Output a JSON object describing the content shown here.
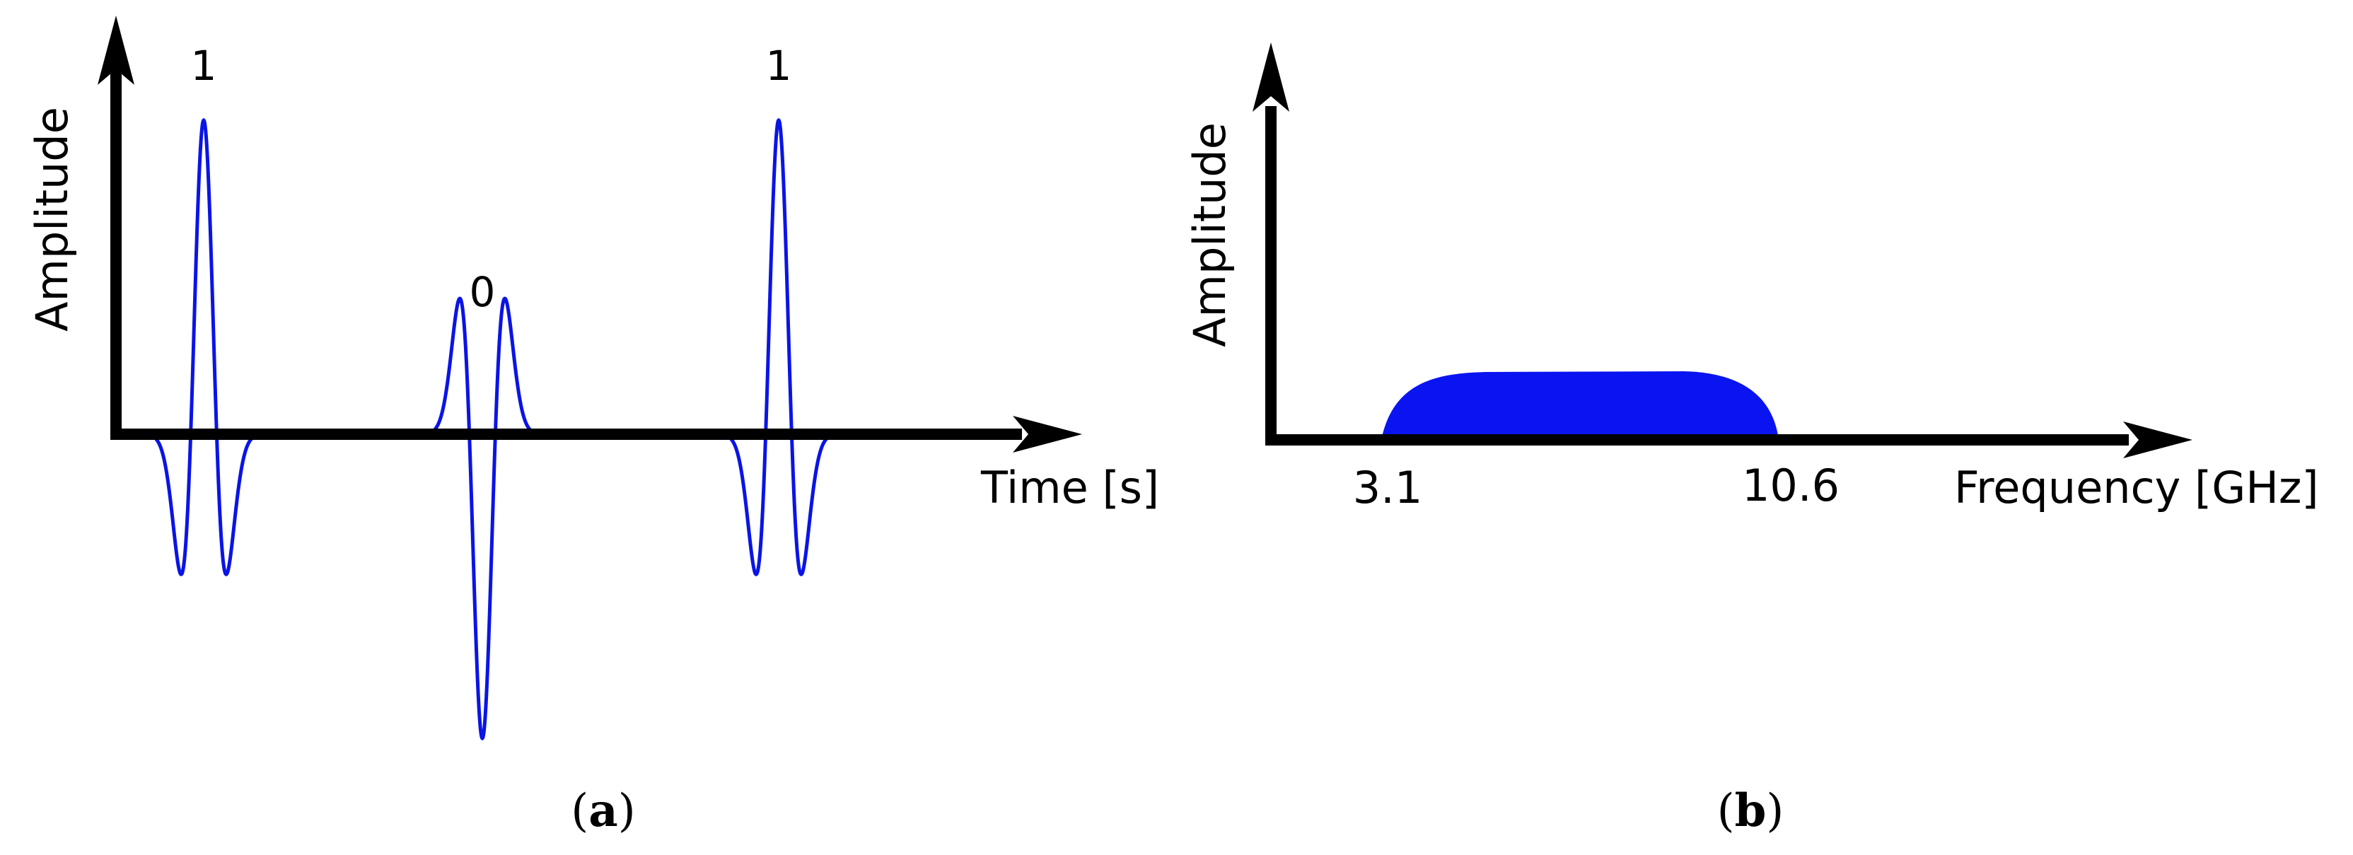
{
  "colors": {
    "axis": "#000000",
    "signal": "#0a14e6",
    "spectrum": "#0a14f0",
    "background": "#ffffff"
  },
  "panel_a": {
    "ylabel": "Amplitude",
    "xlabel": "Time [s]",
    "pulses": [
      {
        "bit": "1",
        "shape": "monocycle-positive"
      },
      {
        "bit": "0",
        "shape": "monocycle-negative"
      },
      {
        "bit": "1",
        "shape": "monocycle-positive"
      }
    ],
    "caption": {
      "open": "(",
      "letter": "a",
      "close": ")"
    }
  },
  "panel_b": {
    "ylabel": "Amplitude",
    "xlabel": "Frequency [GHz]",
    "band_start": "3.1",
    "band_end": "10.6",
    "caption": {
      "open": "(",
      "letter": "b",
      "close": ")"
    }
  }
}
